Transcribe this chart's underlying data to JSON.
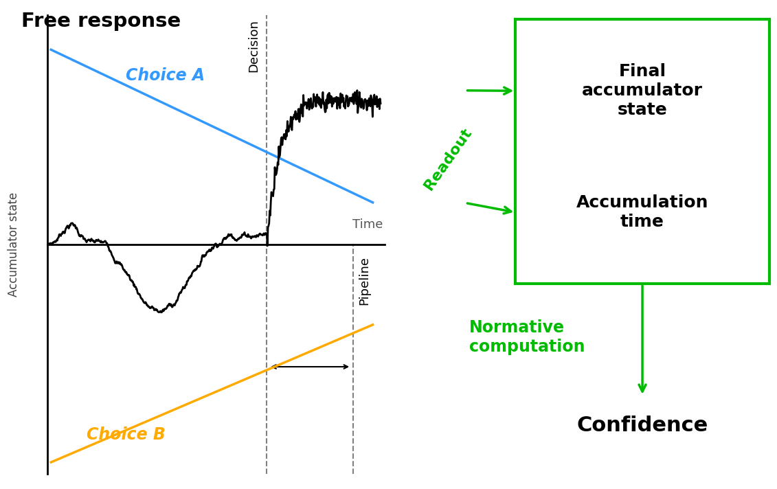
{
  "title": "Free response",
  "bg_color": "#e0e0e0",
  "white_bg": "#ffffff",
  "green_color": "#00bb00",
  "blue_color": "#3399ff",
  "orange_color": "#ffaa00",
  "black_color": "#000000",
  "choice_a_label": "Choice A",
  "choice_b_label": "Choice B",
  "time_label": "Time",
  "decision_label": "Decision",
  "pipeline_label": "Pipeline",
  "accumulator_label": "Accumulator state",
  "final_acc_label": "Final\naccumulator\nstate",
  "acc_time_label": "Accumulation\ntime",
  "readout_label": "Readout",
  "normative_label": "Normative\ncomputation",
  "confidence_label": "Confidence"
}
